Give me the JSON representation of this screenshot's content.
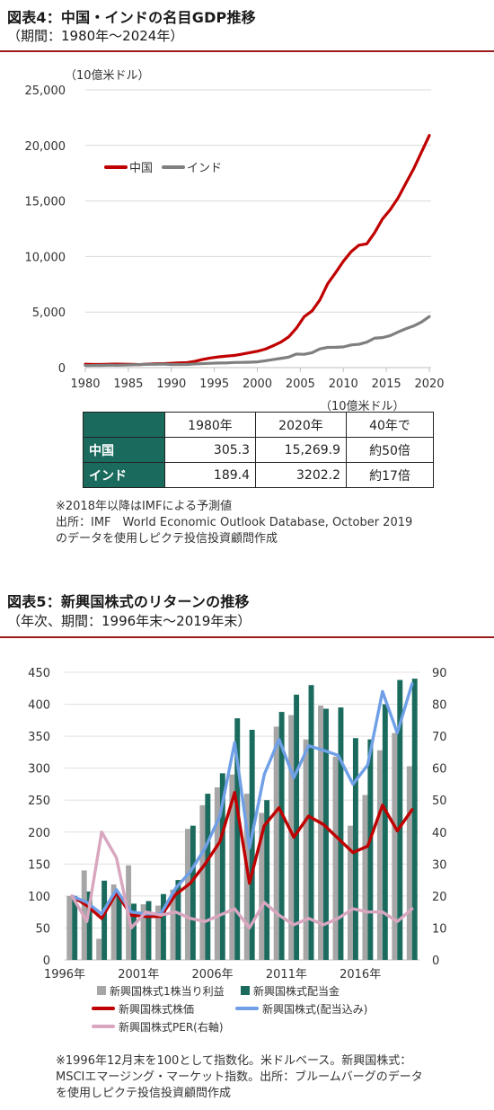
{
  "section1": {
    "title": "図表4：中国・インドの名目GDP推移",
    "subtitle": "（期間：1980年～2024年）",
    "unit_label": "（10億米ドル）",
    "table_unit": "（10億米ドル）",
    "table": {
      "headers": [
        "1980年",
        "2020年",
        "40年で"
      ],
      "rows": [
        {
          "label": "中国",
          "values": [
            "305.3",
            "15,269.9",
            "約50倍"
          ]
        },
        {
          "label": "インド",
          "values": [
            "189.4",
            "3202.2",
            "約17倍"
          ]
        }
      ]
    },
    "notes": [
      "※2018年以降はIMFによる予測値",
      "出所：IMF　World Economic Outlook Database, October 2019",
      "のデータを使用しピクテ投信投資顧問作成"
    ]
  },
  "section2": {
    "title": "図表5：新興国株式のリターンの推移",
    "subtitle": "（年次、期間：1996年末～2019年末）",
    "notes": [
      "※1996年12月末を100として指数化。米ドルベース。新興国株式：",
      "MSCIエマージング・マーケット指数。出所：ブルームバーグのデータ",
      "を使用しピクテ投信投資顧問作成"
    ]
  },
  "chart_data": [
    {
      "type": "line",
      "ylabel": "（10億米ドル）",
      "ylim": [
        0,
        25000
      ],
      "yticks": [
        "0",
        "5,000",
        "10,000",
        "15,000",
        "20,000",
        "25,000"
      ],
      "xticks": [
        "1980",
        "1985",
        "1990",
        "1995",
        "2000",
        "2005",
        "2010",
        "2015",
        "2020"
      ],
      "legend_position": "top-left",
      "grid": true,
      "x": [
        1980,
        1981,
        1982,
        1983,
        1984,
        1985,
        1986,
        1987,
        1988,
        1989,
        1990,
        1991,
        1992,
        1993,
        1994,
        1995,
        1996,
        1997,
        1998,
        1999,
        2000,
        2001,
        2002,
        2003,
        2004,
        2005,
        2006,
        2007,
        2008,
        2009,
        2010,
        2011,
        2012,
        2013,
        2014,
        2015,
        2016,
        2017,
        2018,
        2019,
        2020,
        2021,
        2022,
        2023,
        2024
      ],
      "series": [
        {
          "name": "中国",
          "color": "#c00000",
          "values": [
            305,
            290,
            285,
            310,
            315,
            310,
            300,
            275,
            320,
            350,
            360,
            385,
            425,
            445,
            565,
            735,
            865,
            960,
            1030,
            1090,
            1210,
            1340,
            1470,
            1660,
            1960,
            2290,
            2760,
            3550,
            4590,
            5100,
            6090,
            7550,
            8530,
            9570,
            10440,
            11020,
            11140,
            12140,
            13370,
            14220,
            15270,
            16600,
            17900,
            19400,
            20900
          ]
        },
        {
          "name": "インド",
          "color": "#7f7f7f",
          "values": [
            189,
            197,
            203,
            220,
            215,
            235,
            250,
            280,
            300,
            300,
            320,
            275,
            290,
            285,
            330,
            360,
            390,
            415,
            420,
            460,
            470,
            485,
            515,
            610,
            720,
            830,
            940,
            1220,
            1200,
            1340,
            1680,
            1820,
            1830,
            1860,
            2040,
            2100,
            2290,
            2650,
            2700,
            2880,
            3200,
            3500,
            3750,
            4100,
            4600
          ]
        }
      ]
    },
    {
      "type": "bar",
      "yticks_left": [
        "0",
        "50",
        "100",
        "150",
        "200",
        "250",
        "300",
        "350",
        "400",
        "450"
      ],
      "yticks_right": [
        "0",
        "10",
        "20",
        "30",
        "40",
        "50",
        "60",
        "70",
        "80",
        "90"
      ],
      "ylim_left": [
        0,
        450
      ],
      "ylim_right": [
        0,
        90
      ],
      "xticks": [
        "1996年",
        "2001年",
        "2006年",
        "2011年",
        "2016年"
      ],
      "x": [
        1996,
        1997,
        1998,
        1999,
        2000,
        2001,
        2002,
        2003,
        2004,
        2005,
        2006,
        2007,
        2008,
        2009,
        2010,
        2011,
        2012,
        2013,
        2014,
        2015,
        2016,
        2017,
        2018,
        2019
      ],
      "legend_position": "bottom",
      "series": [
        {
          "name": "新興国株式1株当り利益",
          "type": "bar",
          "axis": "left",
          "color": "#a6a6a6",
          "values": [
            100,
            140,
            33,
            118,
            148,
            87,
            85,
            110,
            205,
            242,
            270,
            290,
            260,
            230,
            365,
            383,
            345,
            398,
            318,
            210,
            258,
            328,
            355,
            303
          ]
        },
        {
          "name": "新興国株式配当金",
          "type": "bar",
          "axis": "left",
          "color": "#1a6b5e",
          "values": [
            100,
            107,
            124,
            100,
            88,
            92,
            103,
            125,
            210,
            260,
            292,
            378,
            360,
            250,
            388,
            415,
            430,
            393,
            395,
            347,
            345,
            400,
            438,
            440
          ]
        },
        {
          "name": "新興国株式株価",
          "type": "line",
          "axis": "left",
          "color": "#c00000",
          "values": [
            100,
            85,
            65,
            105,
            70,
            68,
            68,
            102,
            120,
            150,
            185,
            262,
            120,
            210,
            238,
            192,
            225,
            212,
            190,
            168,
            178,
            242,
            202,
            235
          ]
        },
        {
          "name": "新興国株式(配当込み)",
          "type": "line",
          "axis": "left",
          "color": "#6f9fe6",
          "values": [
            100,
            90,
            72,
            110,
            75,
            72,
            72,
            112,
            138,
            175,
            225,
            340,
            175,
            290,
            345,
            285,
            335,
            328,
            320,
            275,
            305,
            420,
            355,
            432
          ]
        },
        {
          "name": "新興国株式PER(右軸)",
          "type": "line",
          "axis": "right",
          "color": "#d9a6bf",
          "values": [
            20,
            12,
            40,
            32,
            10,
            15,
            14,
            15,
            13,
            12,
            14,
            16,
            10,
            18,
            14,
            11,
            13,
            11,
            13,
            16,
            15,
            15,
            12,
            16
          ]
        }
      ]
    }
  ]
}
